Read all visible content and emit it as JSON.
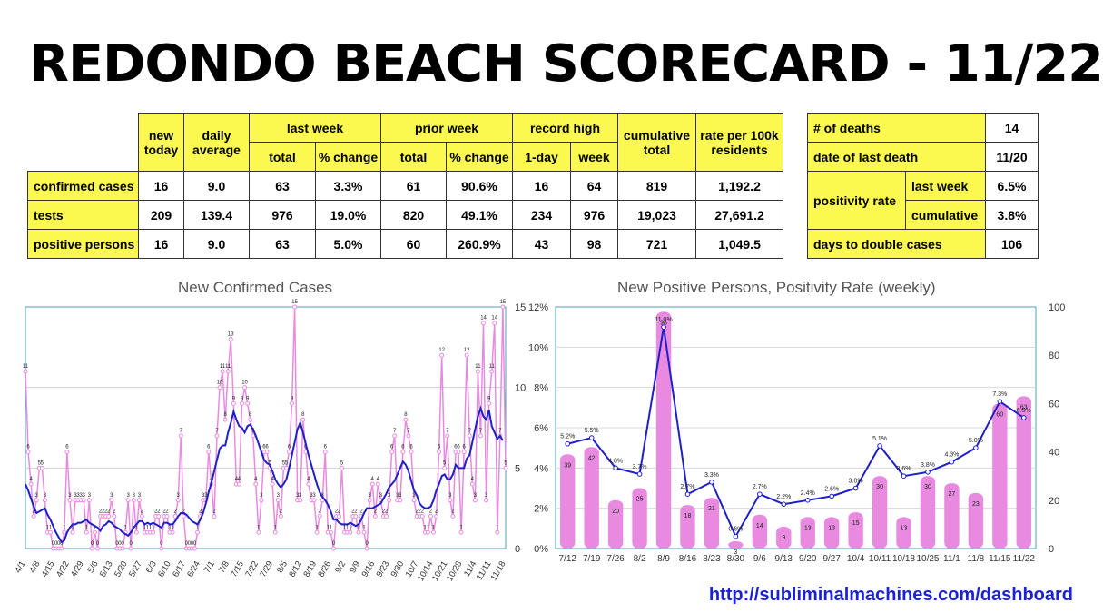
{
  "title": "REDONDO BEACH SCORECARD - 11/22",
  "main_table": {
    "headers": {
      "new_today": "new today",
      "daily_average": "daily average",
      "last_week": "last week",
      "prior_week": "prior week",
      "record_high": "record high",
      "cumulative_total": "cumulative total",
      "rate": "rate per 100k residents",
      "total": "total",
      "pct_change": "% change",
      "one_day": "1-day",
      "week": "week"
    },
    "rows": [
      {
        "label": "confirmed cases",
        "cells": [
          "16",
          "9.0",
          "63",
          "3.3%",
          "61",
          "90.6%",
          "16",
          "64",
          "819",
          "1,192.2"
        ]
      },
      {
        "label": "tests",
        "cells": [
          "209",
          "139.4",
          "976",
          "19.0%",
          "820",
          "49.1%",
          "234",
          "976",
          "19,023",
          "27,691.2"
        ]
      },
      {
        "label": "positive persons",
        "cells": [
          "16",
          "9.0",
          "63",
          "5.0%",
          "60",
          "260.9%",
          "43",
          "98",
          "721",
          "1,049.5"
        ]
      }
    ]
  },
  "side_table": {
    "deaths_label": "# of deaths",
    "deaths_value": "14",
    "last_death_label": "date of last death",
    "last_death_value": "11/20",
    "positivity_label": "positivity rate",
    "last_week_label": "last week",
    "last_week_value": "6.5%",
    "cumulative_label": "cumulative",
    "cumulative_value": "3.8%",
    "double_label": "days to double cases",
    "double_value": "106"
  },
  "url": "http://subliminalmachines.com/dashboard",
  "chart_data": [
    {
      "type": "line",
      "title": "New Confirmed Cases",
      "xlabel": "",
      "ylabel": "",
      "ylim": [
        0,
        15
      ],
      "yticks": [
        "0",
        "5",
        "10",
        "15"
      ],
      "grid": true,
      "x_tick_labels": [
        "4/1",
        "4/8",
        "4/15",
        "4/22",
        "4/29",
        "5/6",
        "5/13",
        "5/20",
        "5/27",
        "6/3",
        "6/10",
        "6/17",
        "6/24",
        "7/1",
        "7/8",
        "7/15",
        "7/22",
        "7/29",
        "8/5",
        "8/12",
        "8/19",
        "8/26",
        "9/2",
        "9/9",
        "9/16",
        "9/23",
        "9/30",
        "10/7",
        "10/14",
        "10/21",
        "10/28",
        "11/4",
        "11/11",
        "11/18"
      ],
      "colors": {
        "daily": "#e88be0",
        "average": "#1f1fc8"
      },
      "series": [
        {
          "values": [
            11,
            6,
            4,
            2,
            3,
            5,
            5,
            3,
            1,
            1,
            0,
            0,
            0,
            0,
            1,
            6,
            3,
            1,
            3,
            3,
            3,
            3,
            1,
            3,
            0,
            1,
            0,
            2,
            2,
            2,
            2,
            3,
            2,
            0,
            0,
            0,
            1,
            3,
            0,
            3,
            1,
            3,
            2,
            1,
            1,
            1,
            1,
            2,
            2,
            0,
            2,
            2,
            1,
            1,
            2,
            3,
            7,
            2,
            0,
            0,
            0,
            0,
            1,
            2,
            3,
            3,
            6,
            4,
            2,
            7,
            10,
            11,
            8,
            11,
            13,
            9,
            4,
            4,
            9,
            10,
            9,
            8,
            7,
            4,
            1,
            3,
            6,
            6,
            5,
            4,
            1,
            3,
            2,
            5,
            5,
            6,
            9,
            15,
            3,
            3,
            8,
            6,
            4,
            3,
            3,
            1,
            2,
            3,
            6,
            1,
            1,
            0,
            2,
            2,
            5,
            1,
            1,
            1,
            2,
            2,
            1,
            2,
            1,
            0,
            3,
            4,
            2,
            4,
            3,
            2,
            2,
            3,
            6,
            7,
            3,
            3,
            6,
            8,
            7,
            6,
            3,
            2,
            2,
            2,
            1,
            1,
            2,
            1,
            2,
            6,
            12,
            5,
            7,
            3,
            2,
            6,
            6,
            1,
            6,
            12,
            7,
            4,
            3,
            11,
            7,
            14,
            3,
            9,
            11,
            14,
            1,
            7,
            15,
            5
          ]
        },
        {
          "values": [
            4.0,
            3.6,
            3.1,
            2.6,
            2.2,
            2.3,
            2.4,
            2.5,
            2.1,
            1.8,
            1.4,
            1.0,
            0.7,
            0.4,
            0.5,
            1.0,
            1.3,
            1.5,
            1.5,
            1.6,
            1.6,
            1.7,
            1.8,
            1.6,
            1.5,
            1.4,
            1.3,
            1.1,
            1.4,
            1.5,
            1.7,
            1.6,
            1.4,
            1.3,
            1.2,
            1.0,
            0.9,
            0.8,
            1.0,
            1.3,
            1.5,
            1.7,
            1.7,
            1.5,
            1.6,
            1.5,
            1.6,
            1.5,
            1.4,
            1.3,
            1.6,
            1.6,
            1.5,
            1.5,
            1.7,
            2.0,
            2.2,
            2.2,
            2.1,
            1.9,
            1.7,
            1.6,
            1.5,
            1.8,
            2.2,
            2.8,
            3.5,
            4.1,
            4.8,
            5.5,
            6.2,
            6.4,
            6.4,
            7.2,
            7.8,
            8.5,
            8.0,
            7.6,
            7.5,
            7.2,
            7.6,
            7.7,
            7.4,
            7.0,
            6.5,
            6.0,
            5.5,
            5.3,
            5.2,
            4.8,
            4.3,
            4.0,
            3.8,
            4.0,
            4.3,
            5.0,
            5.8,
            6.6,
            7.4,
            7.8,
            7.2,
            6.5,
            5.8,
            5.2,
            4.6,
            4.0,
            3.5,
            3.2,
            3.0,
            2.7,
            2.3,
            1.8,
            1.8,
            1.6,
            1.5,
            1.5,
            1.5,
            1.6,
            1.5,
            1.4,
            1.5,
            1.8,
            2.2,
            2.5,
            2.5,
            2.5,
            2.6,
            2.7,
            2.8,
            3.1,
            3.4,
            3.8,
            4.0,
            4.2,
            4.6,
            5.0,
            5.4,
            5.2,
            4.8,
            4.2,
            3.6,
            3.3,
            2.8,
            2.6,
            2.5,
            2.5,
            2.6,
            3.0,
            3.6,
            4.0,
            4.5,
            4.6,
            4.3,
            4.3,
            4.6,
            5.2,
            5.0,
            5.0,
            5.0,
            5.6,
            5.8,
            6.6,
            7.4,
            8.2,
            8.7,
            8.2,
            8.0,
            8.6,
            7.6,
            7.2,
            6.8,
            7.0,
            6.7
          ]
        }
      ]
    },
    {
      "type": "bar",
      "title": "New Positive Persons, Positivity Rate (weekly)",
      "categories": [
        "7/12",
        "7/19",
        "7/26",
        "8/2",
        "8/9",
        "8/16",
        "8/23",
        "8/30",
        "9/6",
        "9/13",
        "9/20",
        "9/27",
        "10/4",
        "10/11",
        "10/18",
        "10/25",
        "11/1",
        "11/8",
        "11/15",
        "11/22"
      ],
      "left_axis_ticks": [
        "0%",
        "2%",
        "4%",
        "6%",
        "8%",
        "10%",
        "12%"
      ],
      "right_axis_ticks": [
        "0",
        "20",
        "40",
        "60",
        "80",
        "100"
      ],
      "ylim_left": [
        0,
        12
      ],
      "ylim_right": [
        0,
        100
      ],
      "colors": {
        "bars": "#e88be0",
        "line": "#1f1fc8"
      },
      "series": [
        {
          "type": "bar",
          "values": [
            39,
            42,
            20,
            25,
            98,
            18,
            21,
            3,
            14,
            9,
            13,
            13,
            15,
            30,
            13,
            30,
            27,
            23,
            60,
            63
          ]
        },
        {
          "type": "line",
          "values": [
            5.2,
            5.5,
            4.0,
            3.7,
            11.0,
            2.7,
            3.3,
            0.6,
            2.7,
            2.2,
            2.4,
            2.6,
            3.0,
            5.1,
            3.6,
            3.8,
            4.3,
            5.0,
            7.3,
            6.5
          ],
          "labels": [
            "5.2%",
            "5.5%",
            "4.0%",
            "3.7%",
            "11.0%",
            "2.7%",
            "3.3%",
            "0.6%",
            "2.7%",
            "2.2%",
            "2.4%",
            "2.6%",
            "3.0%",
            "5.1%",
            "3.6%",
            "3.8%",
            "4.3%",
            "5.0%",
            "7.3%",
            "6.5%"
          ]
        }
      ]
    }
  ]
}
